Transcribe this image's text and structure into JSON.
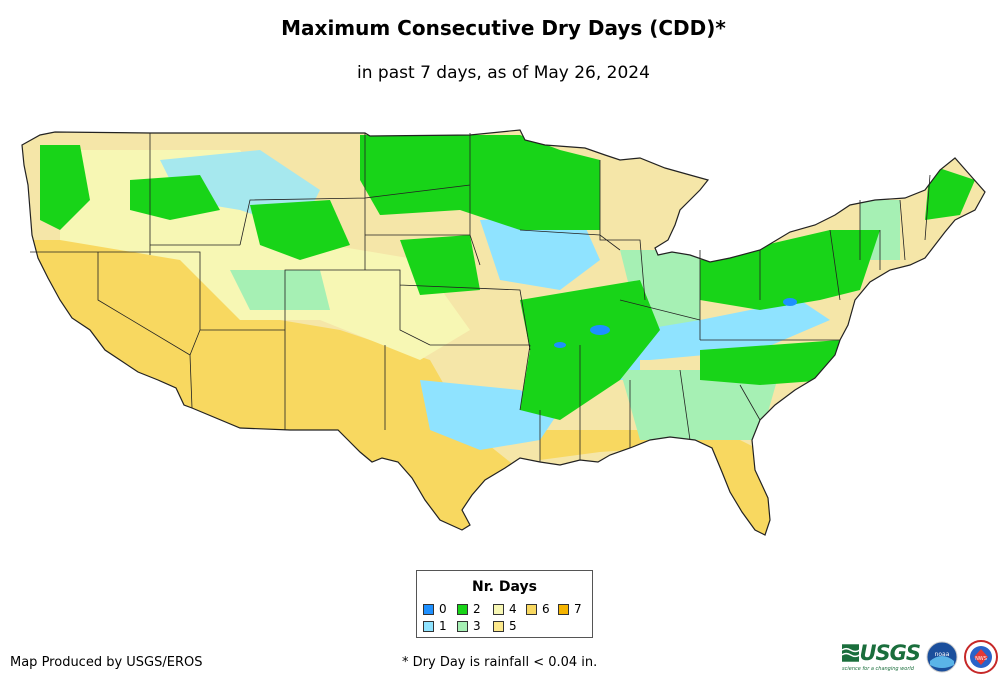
{
  "title": "Maximum Consecutive Dry Days (CDD)*",
  "subtitle": "in past 7 days, as of May 26, 2024",
  "legend": {
    "title": "Nr. Days",
    "items": [
      {
        "label": "0",
        "color": "#1e90ff"
      },
      {
        "label": "1",
        "color": "#8fe3ff"
      },
      {
        "label": "2",
        "color": "#18d418"
      },
      {
        "label": "3",
        "color": "#a6f0b4"
      },
      {
        "label": "4",
        "color": "#f7f7b4"
      },
      {
        "label": "5",
        "color": "#fde98c"
      },
      {
        "label": "6",
        "color": "#f8d860"
      },
      {
        "label": "7",
        "color": "#f5b400"
      }
    ]
  },
  "credit": "Map Produced by USGS/EROS",
  "footnote": "* Dry Day is rainfall < 0.04 in.",
  "logos": {
    "usgs": "USGS",
    "usgs_tagline": "science for a changing world",
    "noaa": "noaa",
    "nws": "NWS"
  }
}
